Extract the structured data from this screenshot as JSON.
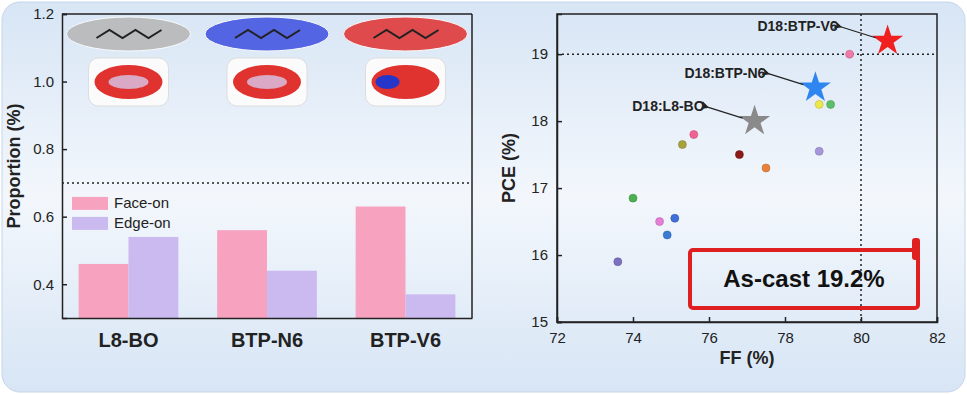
{
  "chart_data": [
    {
      "type": "bar",
      "y_label": "Proportion (%)",
      "categories": [
        "L8-BO",
        "BTP-N6",
        "BTP-V6"
      ],
      "series": [
        {
          "name": "Face-on",
          "color": "#f7a3c0",
          "values": [
            0.46,
            0.56,
            0.63
          ]
        },
        {
          "name": "Edge-on",
          "color": "#cbbaf0",
          "values": [
            0.54,
            0.44,
            0.37
          ]
        }
      ],
      "ylim": [
        0.3,
        1.2
      ],
      "yticks": [
        0.4,
        0.6,
        0.8,
        {
          "value": 1,
          "label": "1.0"
        },
        1.2
      ],
      "hline": 0.7,
      "legend": "left"
    },
    {
      "type": "scatter",
      "x_label": "FF (%)",
      "y_label": "PCE (%)",
      "xlim": [
        72,
        82
      ],
      "xticks": [
        72,
        74,
        76,
        78,
        80,
        82
      ],
      "ylim": [
        15,
        19.6
      ],
      "yticks": [
        15,
        16,
        17,
        18,
        19
      ],
      "vline": 80,
      "hline": 19,
      "series": [
        {
          "marker": "circle",
          "x": [
            79.7,
            78.9,
            79.2,
            75.6,
            75.3,
            76.8,
            77.5,
            78.9,
            74.0,
            75.1,
            74.7,
            74.9,
            73.6
          ],
          "values": [
            19.0,
            18.25,
            18.25,
            17.8,
            17.65,
            17.5,
            17.3,
            17.55,
            16.85,
            16.55,
            16.5,
            16.3,
            15.9
          ],
          "colors": [
            "#f07aa8",
            "#ece84a",
            "#5cbf6a",
            "#f06292",
            "#a8a23c",
            "#8b1a1a",
            "#e8823a",
            "#a896dc",
            "#4caf50",
            "#3f6fd8",
            "#e57fd6",
            "#3a7bd5",
            "#7a6fc0"
          ]
        },
        {
          "name": "D18:L8-BO",
          "color": "#8a8a8a",
          "marker": "star",
          "x": [
            77.2
          ],
          "values": [
            18.0
          ]
        },
        {
          "name": "D18:BTP-N6",
          "color": "#2f86f0",
          "marker": "star",
          "x": [
            78.8
          ],
          "values": [
            18.5
          ]
        },
        {
          "name": "D18:BTP-V6",
          "color": "#f02020",
          "marker": "star",
          "x": [
            80.7
          ],
          "values": [
            19.2
          ]
        }
      ],
      "annotations": [
        "As-cast 19.2%"
      ]
    }
  ]
}
